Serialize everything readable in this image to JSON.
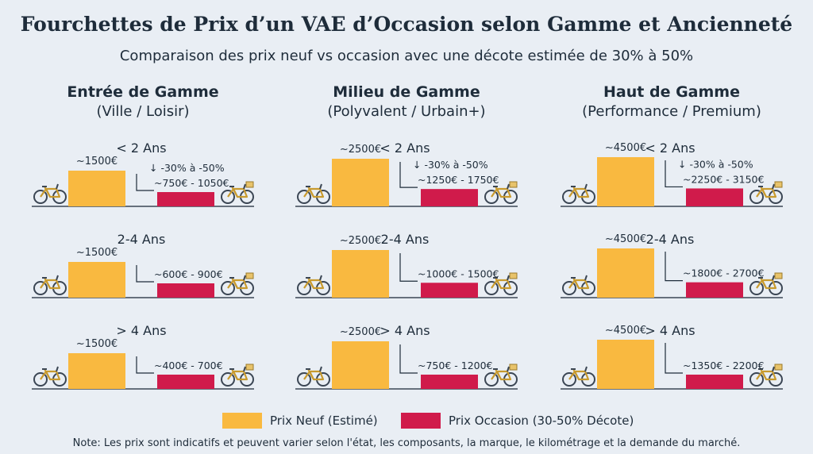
{
  "title": "Fourchettes de Prix d’un VAE d’Occasion selon Gamme et Ancienneté",
  "subtitle": "Comparaison des prix neuf vs occasion avec une décote estimée de 30% à 50%",
  "colors": {
    "neuf": "#f9b940",
    "occasion": "#d01b4b",
    "bike_frame": "#c89a2e",
    "bike_wheel": "#3b4654",
    "axis": "#3b4654",
    "background": "#e9eef4"
  },
  "icons": [
    "bicycle-icon",
    "bicycle-basket-icon",
    "down-arrow-icon"
  ],
  "legend": {
    "neuf": "Prix Neuf (Estimé)",
    "occasion": "Prix Occasion (30-50% Décote)"
  },
  "note": "Note: Les prix sont indicatifs et peuvent varier selon l'état, les composants, la marque, le kilométrage et la demande du marché.",
  "columns": [
    {
      "name": "Entrée de Gamme",
      "sub": "(Ville / Loisir)"
    },
    {
      "name": "Milieu de Gamme",
      "sub": "(Polyvalent / Urbain+)"
    },
    {
      "name": "Haut de Gamme",
      "sub": "(Performance / Premium)"
    }
  ],
  "chart_data": [
    {
      "type": "bar",
      "gamme": "Entrée de Gamme",
      "age": "< 2 Ans",
      "neuf": 1500,
      "neuf_label": "~1500€",
      "occasion_range": [
        750,
        1050
      ],
      "occasion_label": "~750€ - 1050€",
      "decote_label": "↓ -30% à -50%"
    },
    {
      "type": "bar",
      "gamme": "Entrée de Gamme",
      "age": "2-4 Ans",
      "neuf": 1500,
      "neuf_label": "~1500€",
      "occasion_range": [
        600,
        900
      ],
      "occasion_label": "~600€ - 900€",
      "decote_label": ""
    },
    {
      "type": "bar",
      "gamme": "Entrée de Gamme",
      "age": "> 4 Ans",
      "neuf": 1500,
      "neuf_label": "~1500€",
      "occasion_range": [
        400,
        700
      ],
      "occasion_label": "~400€ - 700€",
      "decote_label": ""
    },
    {
      "type": "bar",
      "gamme": "Milieu de Gamme",
      "age": "< 2 Ans",
      "neuf": 2500,
      "neuf_label": "~2500€",
      "occasion_range": [
        1250,
        1750
      ],
      "occasion_label": "~1250€ - 1750€",
      "decote_label": "↓ -30% à -50%"
    },
    {
      "type": "bar",
      "gamme": "Milieu de Gamme",
      "age": "2-4 Ans",
      "neuf": 2500,
      "neuf_label": "~2500€",
      "occasion_range": [
        1000,
        1500
      ],
      "occasion_label": "~1000€ - 1500€",
      "decote_label": ""
    },
    {
      "type": "bar",
      "gamme": "Milieu de Gamme",
      "age": "> 4 Ans",
      "neuf": 2500,
      "neuf_label": "~2500€",
      "occasion_range": [
        750,
        1200
      ],
      "occasion_label": "~750€ - 1200€",
      "decote_label": ""
    },
    {
      "type": "bar",
      "gamme": "Haut de Gamme",
      "age": "< 2 Ans",
      "neuf": 4500,
      "neuf_label": "~4500€",
      "occasion_range": [
        2250,
        3150
      ],
      "occasion_label": "~2250€ - 3150€",
      "decote_label": "↓ -30% à -50%"
    },
    {
      "type": "bar",
      "gamme": "Haut de Gamme",
      "age": "2-4 Ans",
      "neuf": 4500,
      "neuf_label": "~4500€",
      "occasion_range": [
        1800,
        2700
      ],
      "occasion_label": "~1800€ - 2700€",
      "decote_label": ""
    },
    {
      "type": "bar",
      "gamme": "Haut de Gamme",
      "age": "> 4 Ans",
      "neuf": 4500,
      "neuf_label": "~4500€",
      "occasion_range": [
        1350,
        2200
      ],
      "occasion_label": "~1350€ - 2200€",
      "decote_label": ""
    }
  ]
}
